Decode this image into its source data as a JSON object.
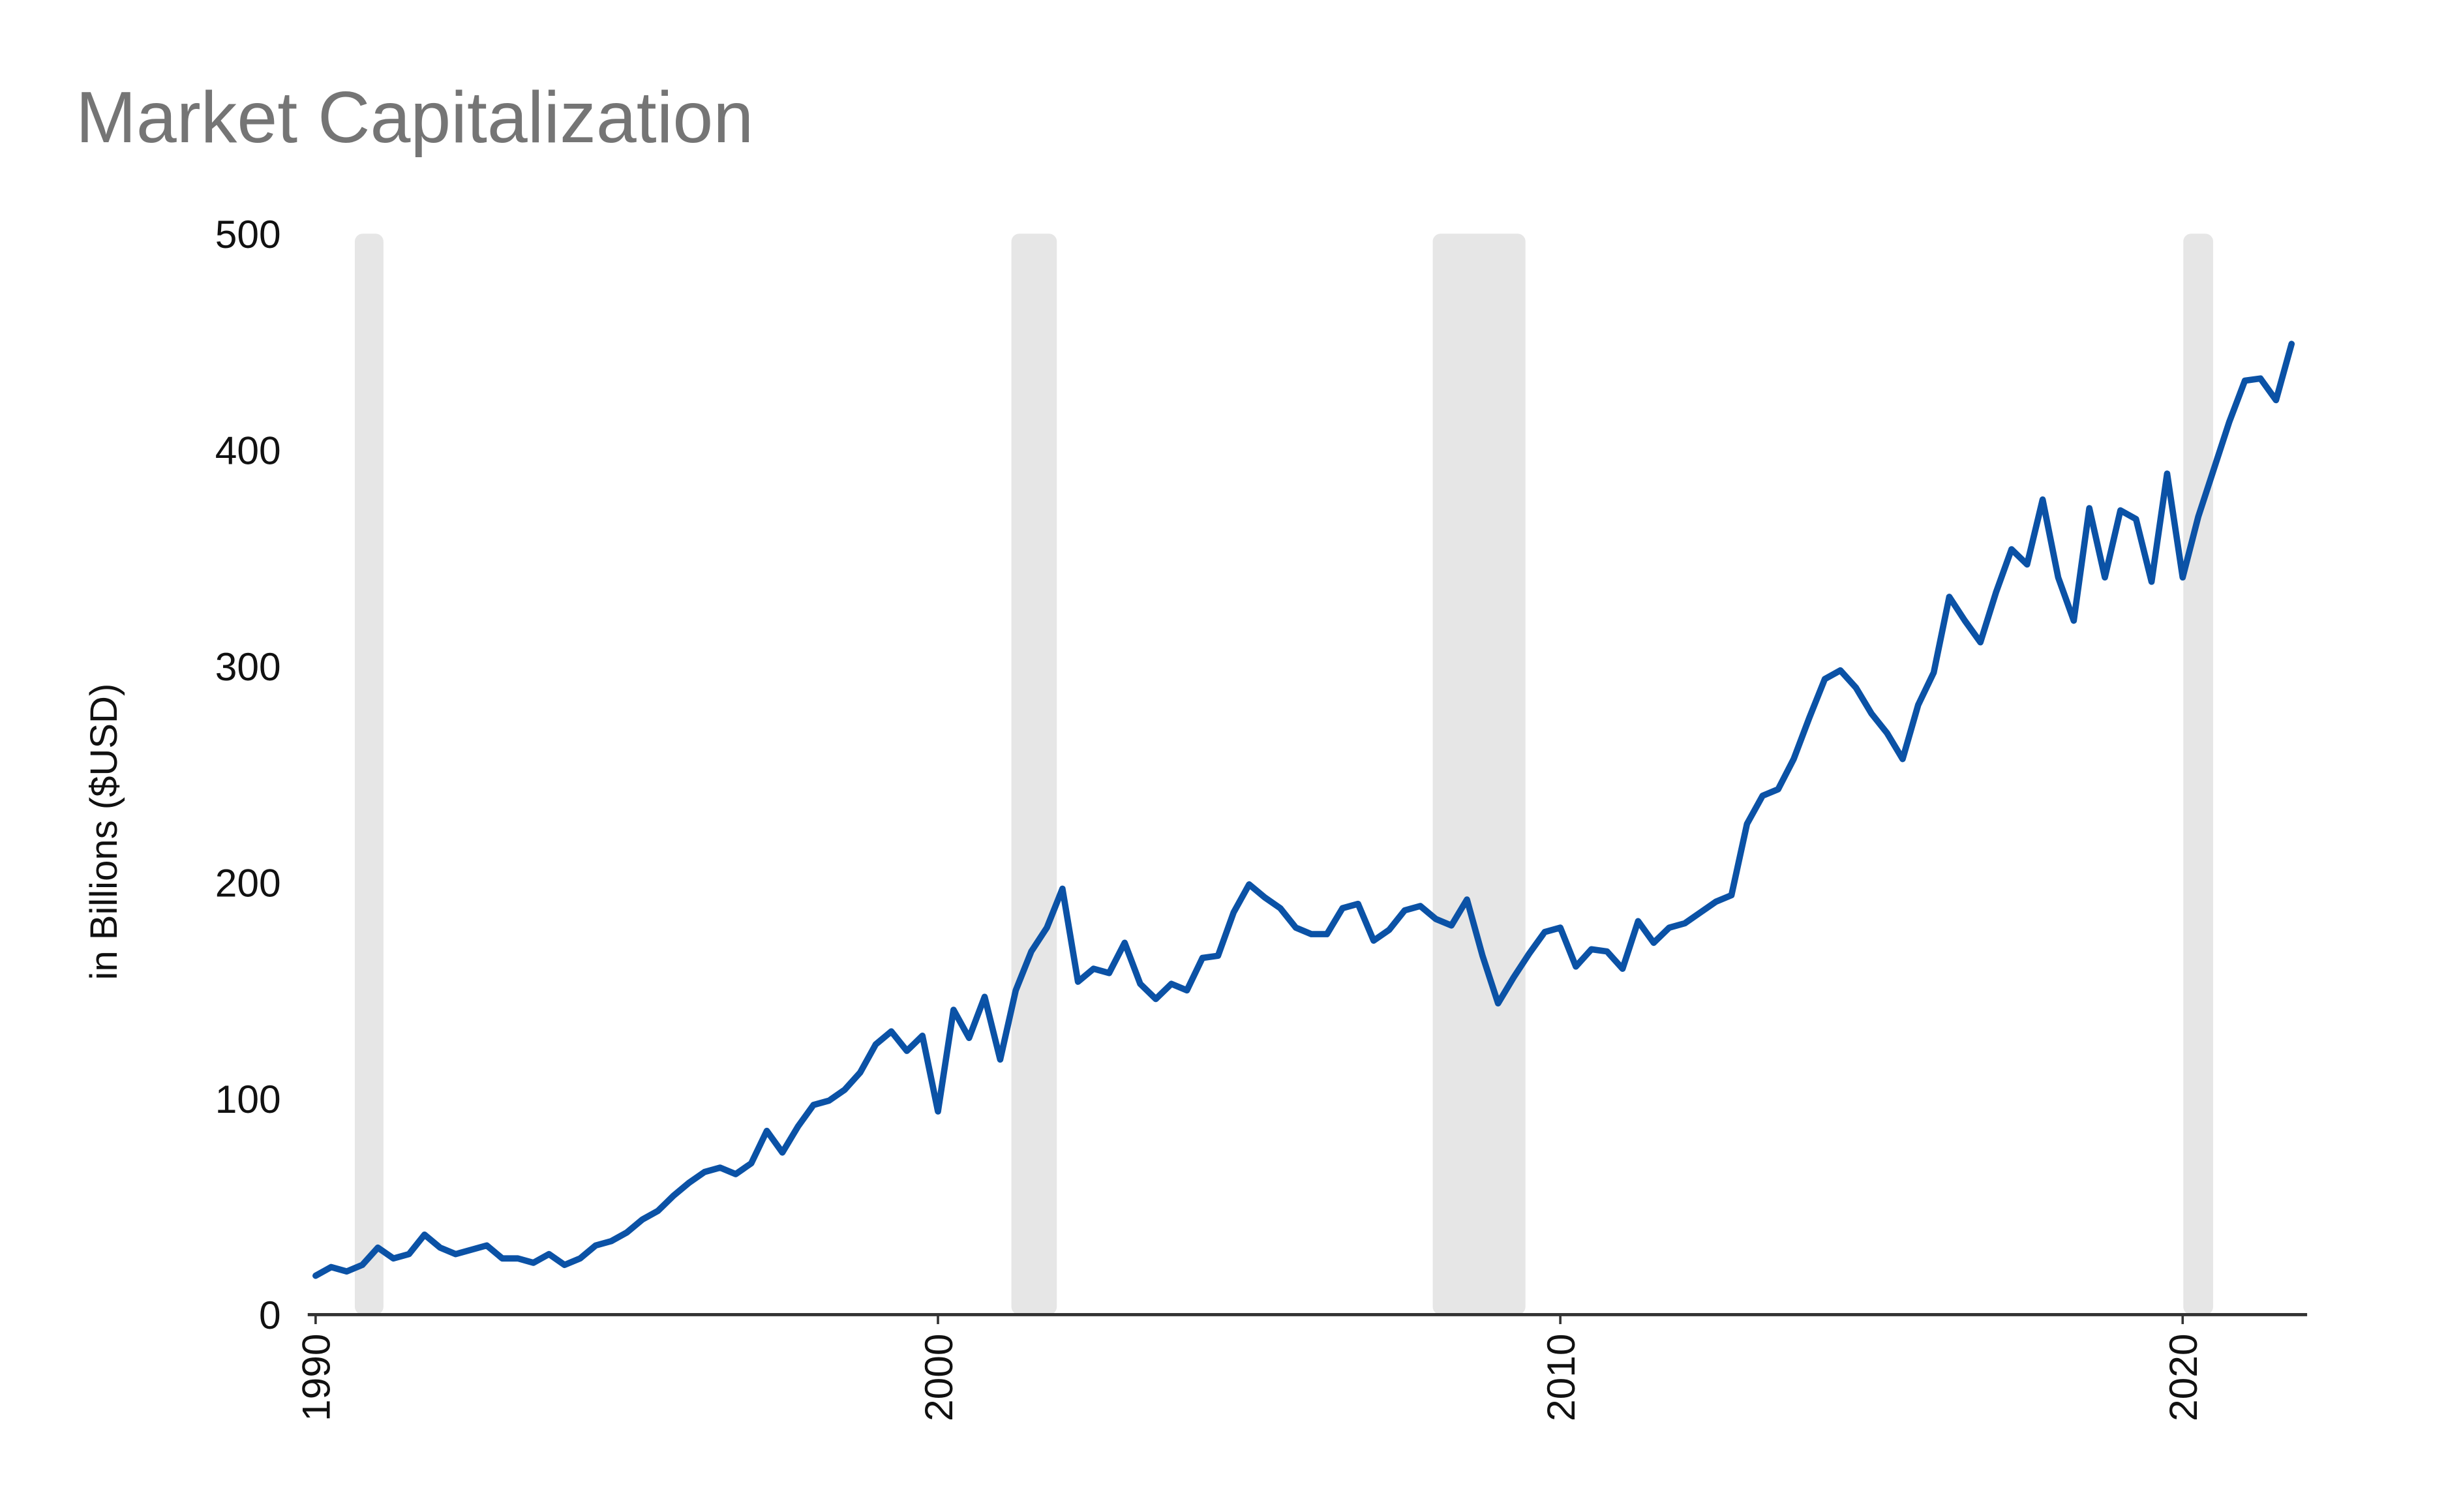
{
  "chart_data": {
    "type": "line",
    "title": "Market Capitalization",
    "y_label": "in Billions ($USD)",
    "color": "#0b52a6",
    "shade_color": "#e6e6e6",
    "xlim": [
      1990,
      2022
    ],
    "xticks": [
      1990,
      2000,
      2010,
      2020
    ],
    "ylim": [
      0,
      500
    ],
    "yticks": [
      0,
      100,
      200,
      300,
      400,
      500
    ],
    "grid": false,
    "shaded_ranges": [
      [
        1990.63,
        1991.09
      ],
      [
        2001.18,
        2001.91
      ],
      [
        2007.95,
        2009.44
      ],
      [
        2020.01,
        2020.49
      ]
    ],
    "x": [
      1990,
      1990.25,
      1990.5,
      1990.75,
      1991,
      1991.25,
      1991.5,
      1991.75,
      1992,
      1992.25,
      1992.5,
      1992.75,
      1993,
      1993.25,
      1993.5,
      1993.75,
      1994,
      1994.25,
      1994.5,
      1994.75,
      1995,
      1995.25,
      1995.5,
      1995.75,
      1996,
      1996.25,
      1996.5,
      1996.75,
      1997,
      1997.25,
      1997.5,
      1997.75,
      1998,
      1998.25,
      1998.5,
      1998.75,
      1999,
      1999.25,
      1999.5,
      1999.75,
      2000,
      2000.25,
      2000.5,
      2000.75,
      2001,
      2001.25,
      2001.5,
      2001.75,
      2002,
      2002.25,
      2002.5,
      2002.75,
      2003,
      2003.25,
      2003.5,
      2003.75,
      2004,
      2004.25,
      2004.5,
      2004.75,
      2005,
      2005.25,
      2005.5,
      2005.75,
      2006,
      2006.25,
      2006.5,
      2006.75,
      2007,
      2007.25,
      2007.5,
      2007.75,
      2008,
      2008.25,
      2008.5,
      2008.75,
      2009,
      2009.25,
      2009.5,
      2009.75,
      2010,
      2010.25,
      2010.5,
      2010.75,
      2011,
      2011.25,
      2011.5,
      2011.75,
      2012,
      2012.25,
      2012.5,
      2012.75,
      2013,
      2013.25,
      2013.5,
      2013.75,
      2014,
      2014.25,
      2014.5,
      2014.75,
      2015,
      2015.25,
      2015.5,
      2015.75,
      2016,
      2016.25,
      2016.5,
      2016.75,
      2017,
      2017.25,
      2017.5,
      2017.75,
      2018,
      2018.25,
      2018.5,
      2018.75,
      2019,
      2019.25,
      2019.5,
      2019.75,
      2020,
      2020.25,
      2020.5,
      2020.75,
      2021,
      2021.25,
      2021.5,
      2021.75
    ],
    "values": [
      18,
      22,
      20,
      23,
      31,
      26,
      28,
      37,
      31,
      28,
      30,
      32,
      26,
      26,
      24,
      28,
      23,
      26,
      32,
      34,
      38,
      44,
      48,
      55,
      61,
      66,
      68,
      65,
      70,
      85,
      75,
      87,
      97,
      99,
      104,
      112,
      125,
      131,
      122,
      129,
      94,
      141,
      128,
      147,
      118,
      150,
      168,
      179,
      197,
      154,
      160,
      158,
      172,
      153,
      146,
      153,
      150,
      165,
      166,
      186,
      199,
      193,
      188,
      179,
      176,
      176,
      188,
      190,
      173,
      178,
      187,
      189,
      183,
      180,
      192,
      166,
      144,
      156,
      167,
      177,
      179,
      161,
      169,
      168,
      160,
      182,
      172,
      179,
      181,
      186,
      191,
      194,
      227,
      240,
      243,
      257,
      276,
      294,
      298,
      290,
      278,
      269,
      257,
      282,
      297,
      332,
      321,
      311,
      334,
      354,
      347,
      377,
      341,
      321,
      373,
      341,
      372,
      368,
      339,
      389,
      341,
      369,
      391,
      413,
      432,
      433,
      423,
      449
    ]
  }
}
